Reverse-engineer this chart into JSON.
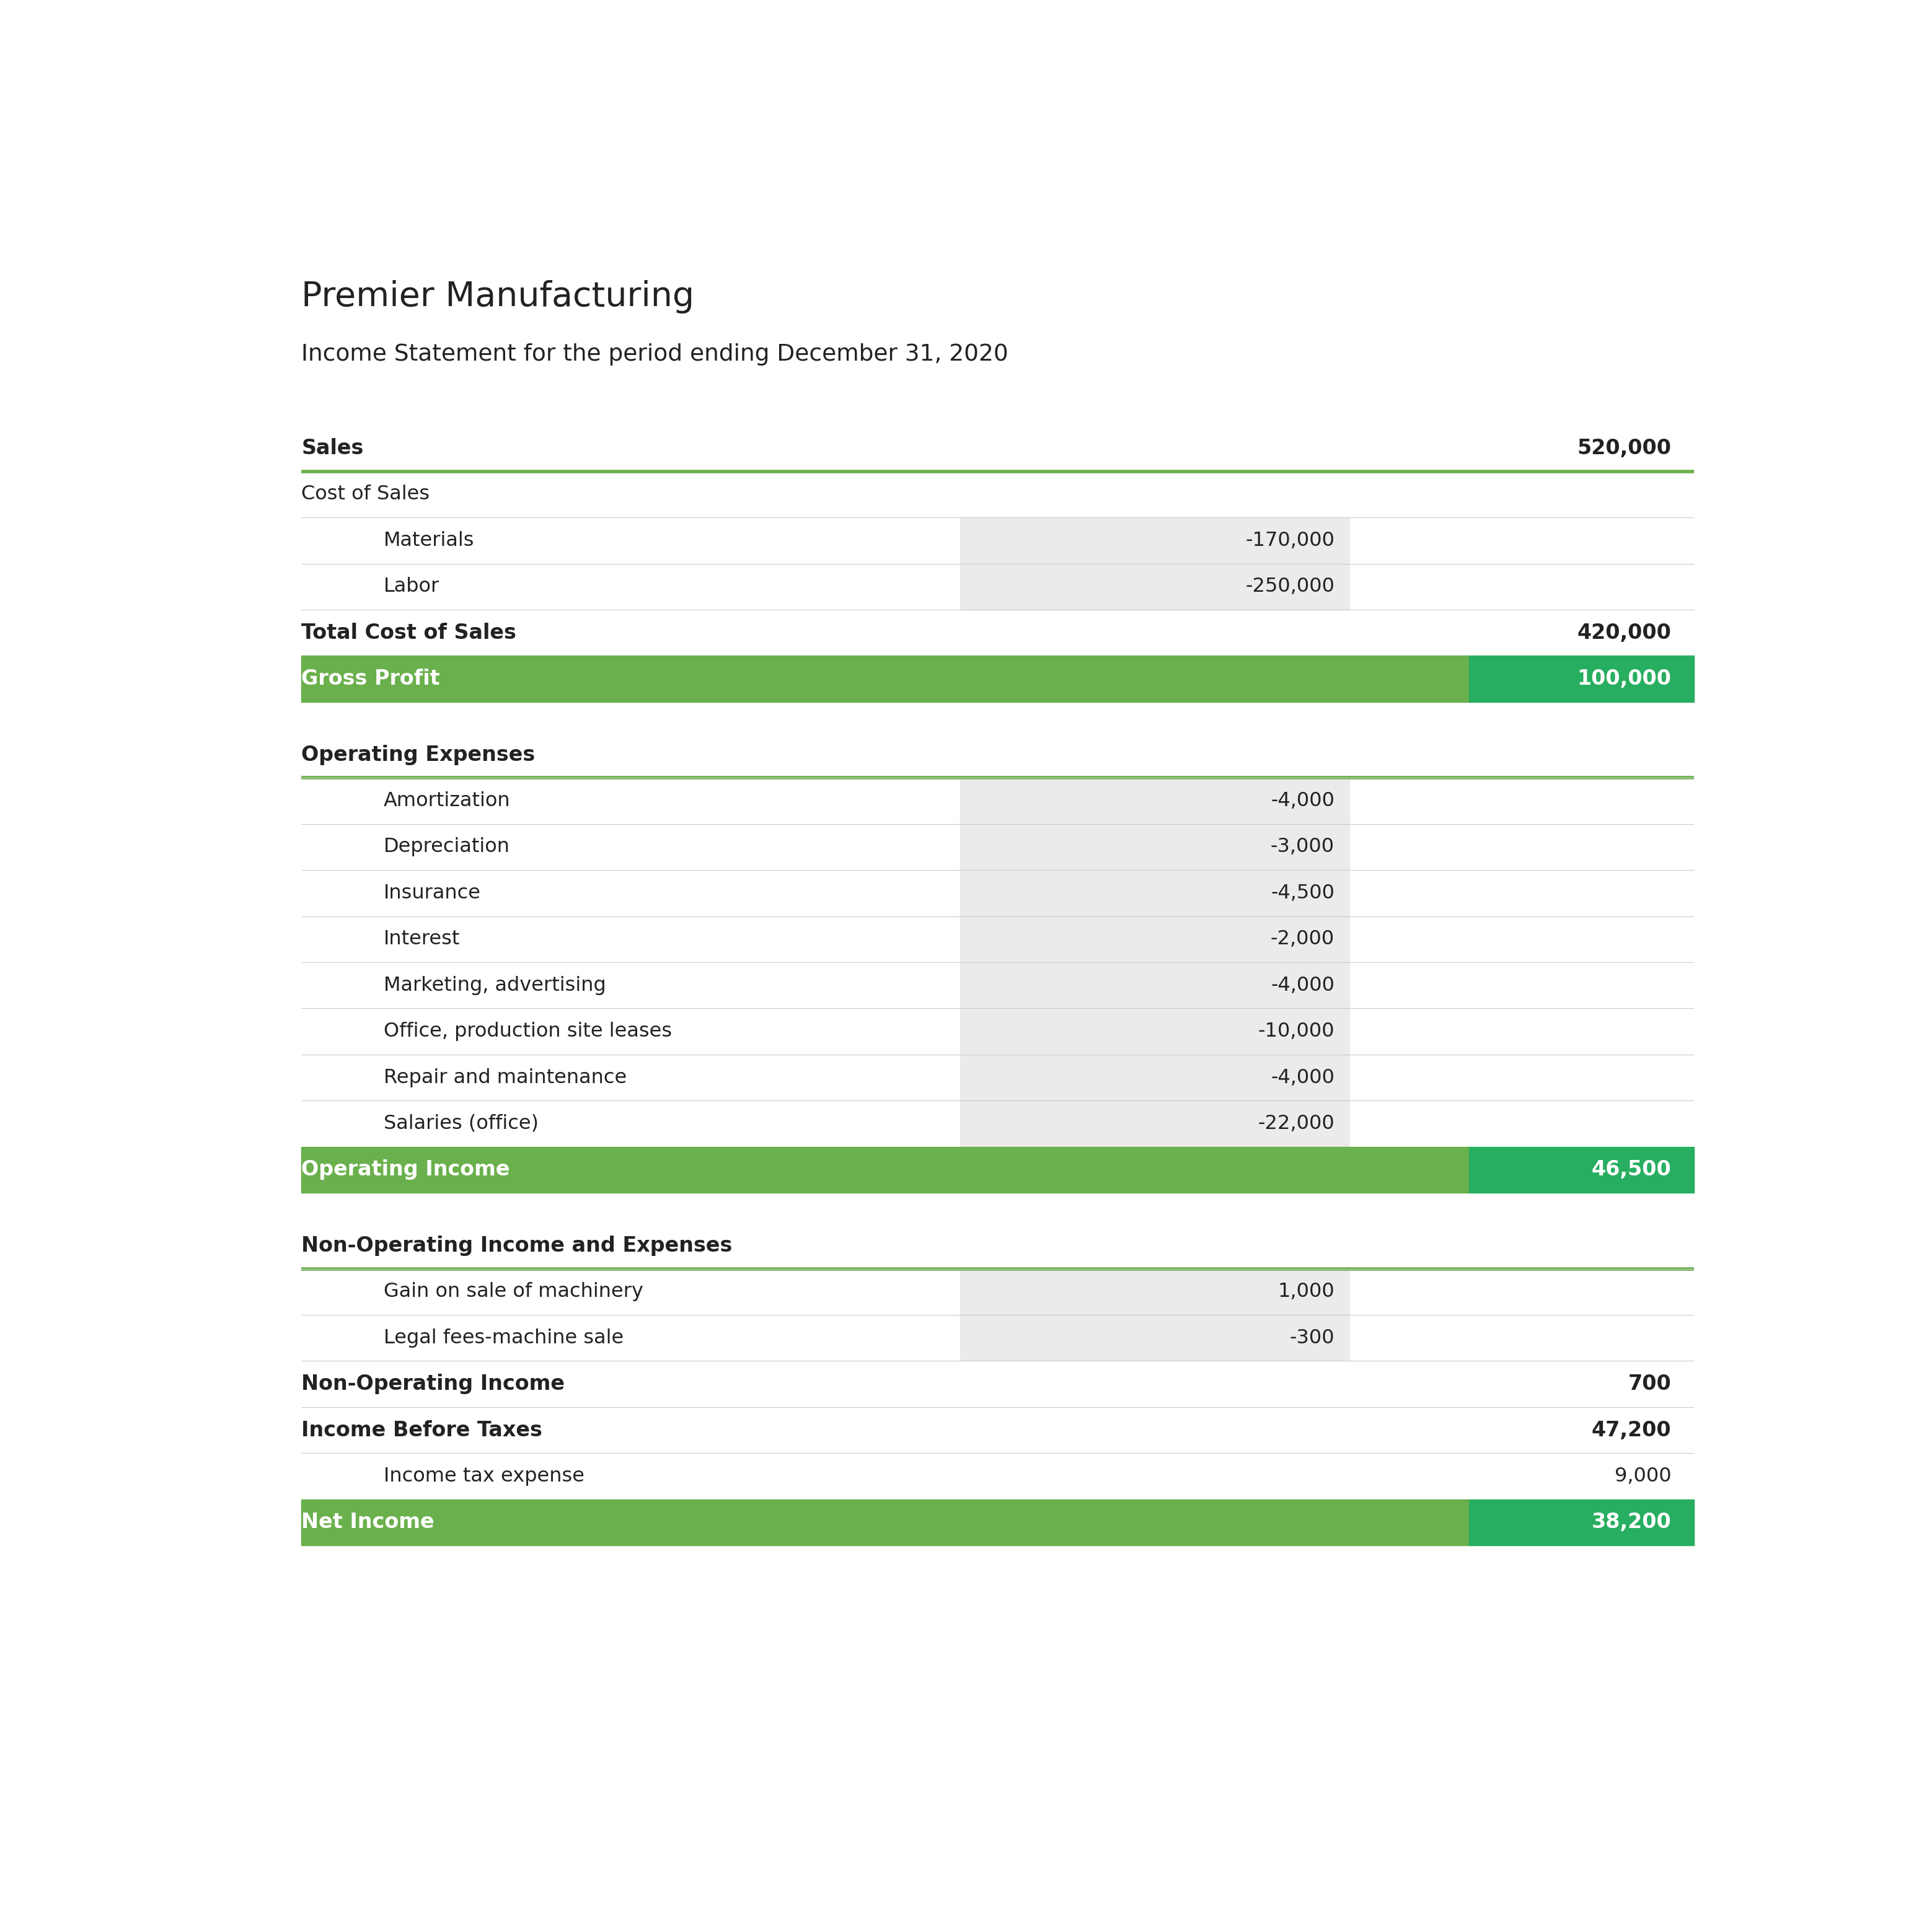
{
  "title": "Premier Manufacturing",
  "subtitle": "Income Statement for the period ending December 31, 2020",
  "green_light": "#6ab04c",
  "green_dark": "#27ae60",
  "green_line": "#6ab04c",
  "bg_color": "#ffffff",
  "text_dark": "#222222",
  "text_white": "#ffffff",
  "shaded_col": "#ebebeb",
  "separator_color": "#cccccc",
  "rows": [
    {
      "label": "Sales",
      "col1": "",
      "col2": "520,000",
      "style": "header_bold",
      "green_line_below": true,
      "indent": 0
    },
    {
      "label": "Cost of Sales",
      "col1": "",
      "col2": "",
      "style": "section_label",
      "separator_above": false,
      "indent": 0
    },
    {
      "label": "Materials",
      "col1": "-170,000",
      "col2": "",
      "style": "item_shaded",
      "separator": true,
      "indent": 1
    },
    {
      "label": "Labor",
      "col1": "-250,000",
      "col2": "",
      "style": "item_shaded",
      "separator": true,
      "indent": 1
    },
    {
      "label": "Total Cost of Sales",
      "col1": "",
      "col2": "420,000",
      "style": "total_bold",
      "separator": true,
      "indent": 0
    },
    {
      "label": "Gross Profit",
      "col1": "",
      "col2": "100,000",
      "style": "highlight_green",
      "indent": 0
    },
    {
      "label": "",
      "col1": "",
      "col2": "",
      "style": "spacer",
      "indent": 0
    },
    {
      "label": "Operating Expenses",
      "col1": "",
      "col2": "",
      "style": "section_bold",
      "green_line_below": true,
      "indent": 0
    },
    {
      "label": "Amortization",
      "col1": "-4,000",
      "col2": "",
      "style": "item_shaded",
      "separator": true,
      "indent": 1
    },
    {
      "label": "Depreciation",
      "col1": "-3,000",
      "col2": "",
      "style": "item_shaded",
      "separator": true,
      "indent": 1
    },
    {
      "label": "Insurance",
      "col1": "-4,500",
      "col2": "",
      "style": "item_shaded",
      "separator": true,
      "indent": 1
    },
    {
      "label": "Interest",
      "col1": "-2,000",
      "col2": "",
      "style": "item_shaded",
      "separator": true,
      "indent": 1
    },
    {
      "label": "Marketing, advertising",
      "col1": "-4,000",
      "col2": "",
      "style": "item_shaded",
      "separator": true,
      "indent": 1
    },
    {
      "label": "Office, production site leases",
      "col1": "-10,000",
      "col2": "",
      "style": "item_shaded",
      "separator": true,
      "indent": 1
    },
    {
      "label": "Repair and maintenance",
      "col1": "-4,000",
      "col2": "",
      "style": "item_shaded",
      "separator": true,
      "indent": 1
    },
    {
      "label": "Salaries (office)",
      "col1": "-22,000",
      "col2": "",
      "style": "item_shaded",
      "separator": true,
      "indent": 1
    },
    {
      "label": "Operating Income",
      "col1": "",
      "col2": "46,500",
      "style": "highlight_green",
      "indent": 0
    },
    {
      "label": "",
      "col1": "",
      "col2": "",
      "style": "spacer",
      "indent": 0
    },
    {
      "label": "Non-Operating Income and Expenses",
      "col1": "",
      "col2": "",
      "style": "section_bold",
      "green_line_below": true,
      "indent": 0
    },
    {
      "label": "Gain on sale of machinery",
      "col1": "1,000",
      "col2": "",
      "style": "item_shaded",
      "separator": true,
      "indent": 1
    },
    {
      "label": "Legal fees-machine sale",
      "col1": "-300",
      "col2": "",
      "style": "item_shaded",
      "separator": true,
      "indent": 1
    },
    {
      "label": "Non-Operating Income",
      "col1": "",
      "col2": "700",
      "style": "total_bold",
      "separator": true,
      "indent": 0
    },
    {
      "label": "Income Before Taxes",
      "col1": "",
      "col2": "47,200",
      "style": "total_bold",
      "separator": true,
      "indent": 0
    },
    {
      "label": "Income tax expense",
      "col1": "",
      "col2": "9,000",
      "style": "item_plain",
      "separator": true,
      "indent": 1
    },
    {
      "label": "Net Income",
      "col1": "",
      "col2": "38,200",
      "style": "highlight_green",
      "indent": 0
    }
  ]
}
